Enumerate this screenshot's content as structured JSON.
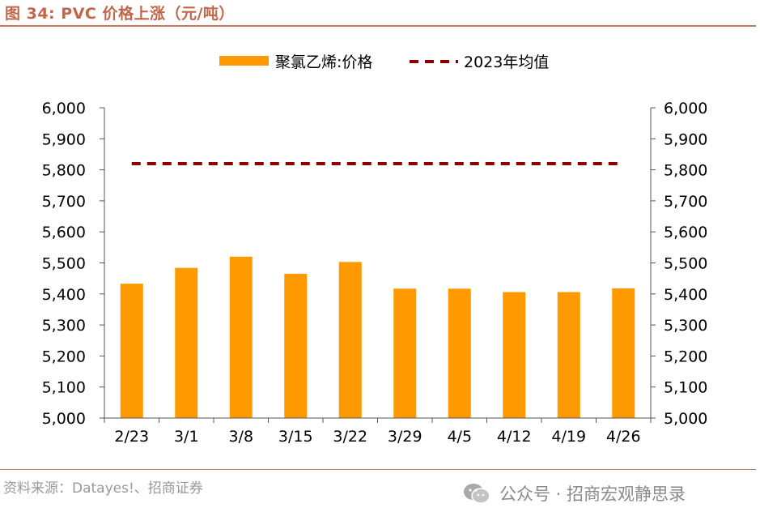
{
  "header": {
    "title": "图 34:  PVC 价格上涨（元/吨）"
  },
  "chart_data": {
    "type": "bar",
    "categories": [
      "2/23",
      "3/1",
      "3/8",
      "3/15",
      "3/22",
      "3/29",
      "4/5",
      "4/12",
      "4/19",
      "4/26"
    ],
    "series": [
      {
        "name": "聚氯乙烯:价格",
        "type": "bar",
        "color": "#ff9900",
        "values": [
          5433,
          5484,
          5520,
          5465,
          5503,
          5417,
          5417,
          5406,
          5406,
          5418
        ]
      },
      {
        "name": "2023年均值",
        "type": "line",
        "style": "dashed",
        "color": "#8b0000",
        "values": [
          5820,
          5820,
          5820,
          5820,
          5820,
          5820,
          5820,
          5820,
          5820,
          5820
        ]
      }
    ],
    "ylim": [
      5000,
      6000
    ],
    "yticks": [
      "5,000",
      "5,100",
      "5,200",
      "5,300",
      "5,400",
      "5,500",
      "5,600",
      "5,700",
      "5,800",
      "5,900",
      "6,000"
    ],
    "legend_position": "top",
    "xlabel": "",
    "ylabel": "",
    "grid": false
  },
  "footer": {
    "source": "资料来源：Datayes!、招商证券",
    "watermark": "公众号 · 招商宏观静思录"
  },
  "icons": {
    "watermark_icon": "wechat-icon"
  }
}
